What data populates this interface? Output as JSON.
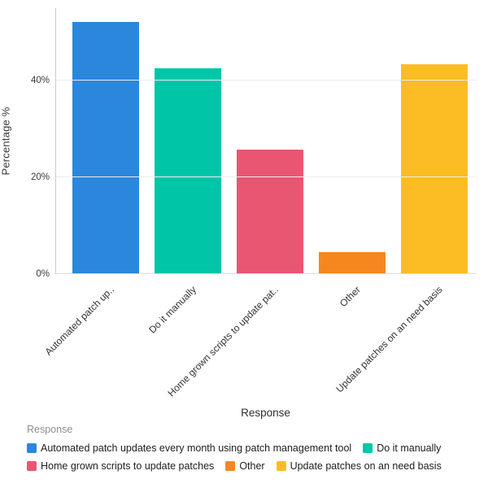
{
  "chart_data": {
    "type": "bar",
    "title": "",
    "xlabel": "Response",
    "ylabel": "Percentage %",
    "legend_title": "Response",
    "legend_position": "bottom",
    "grid": true,
    "ylim": [
      0,
      55
    ],
    "yticks": [
      0,
      20,
      40
    ],
    "ytick_labels": [
      "0%",
      "20%",
      "40%"
    ],
    "categories": [
      "Automated patch updates every month using patch management tool",
      "Do it manually",
      "Home grown scripts to update patches",
      "Other",
      "Update patches on an need basis"
    ],
    "category_tick_labels": [
      "Automated patch up..",
      "Do it manually",
      "Home grown scripts to update pat..",
      "Other",
      "Update patches on an need basis"
    ],
    "values": [
      52.2,
      42.6,
      25.8,
      4.5,
      43.4
    ],
    "colors": [
      "#2B87DB",
      "#00C6A8",
      "#E85672",
      "#F6871F",
      "#FBBD23"
    ]
  }
}
